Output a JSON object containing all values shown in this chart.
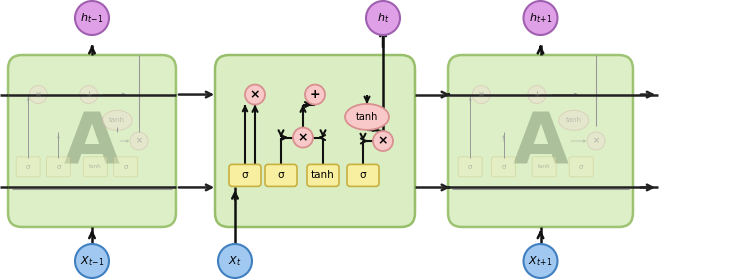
{
  "fig_width": 7.4,
  "fig_height": 2.79,
  "dpi": 100,
  "bg_color": "#ffffff",
  "block_fill": "#d8edbe",
  "block_edge": "#90ba60",
  "pink_fill": "#f9c8c8",
  "pink_edge": "#d89090",
  "yellow_fill": "#f8f0a0",
  "yellow_edge": "#c8b040",
  "blue_fill": "#a0c8f0",
  "blue_edge": "#4080c0",
  "purple_fill": "#e0a0e8",
  "purple_edge": "#a060b0",
  "ghost_fill": "#c8ddb0",
  "ghost_edge": "#90b070",
  "gate_labels": [
    "σ",
    "σ",
    "tanh",
    "σ"
  ]
}
